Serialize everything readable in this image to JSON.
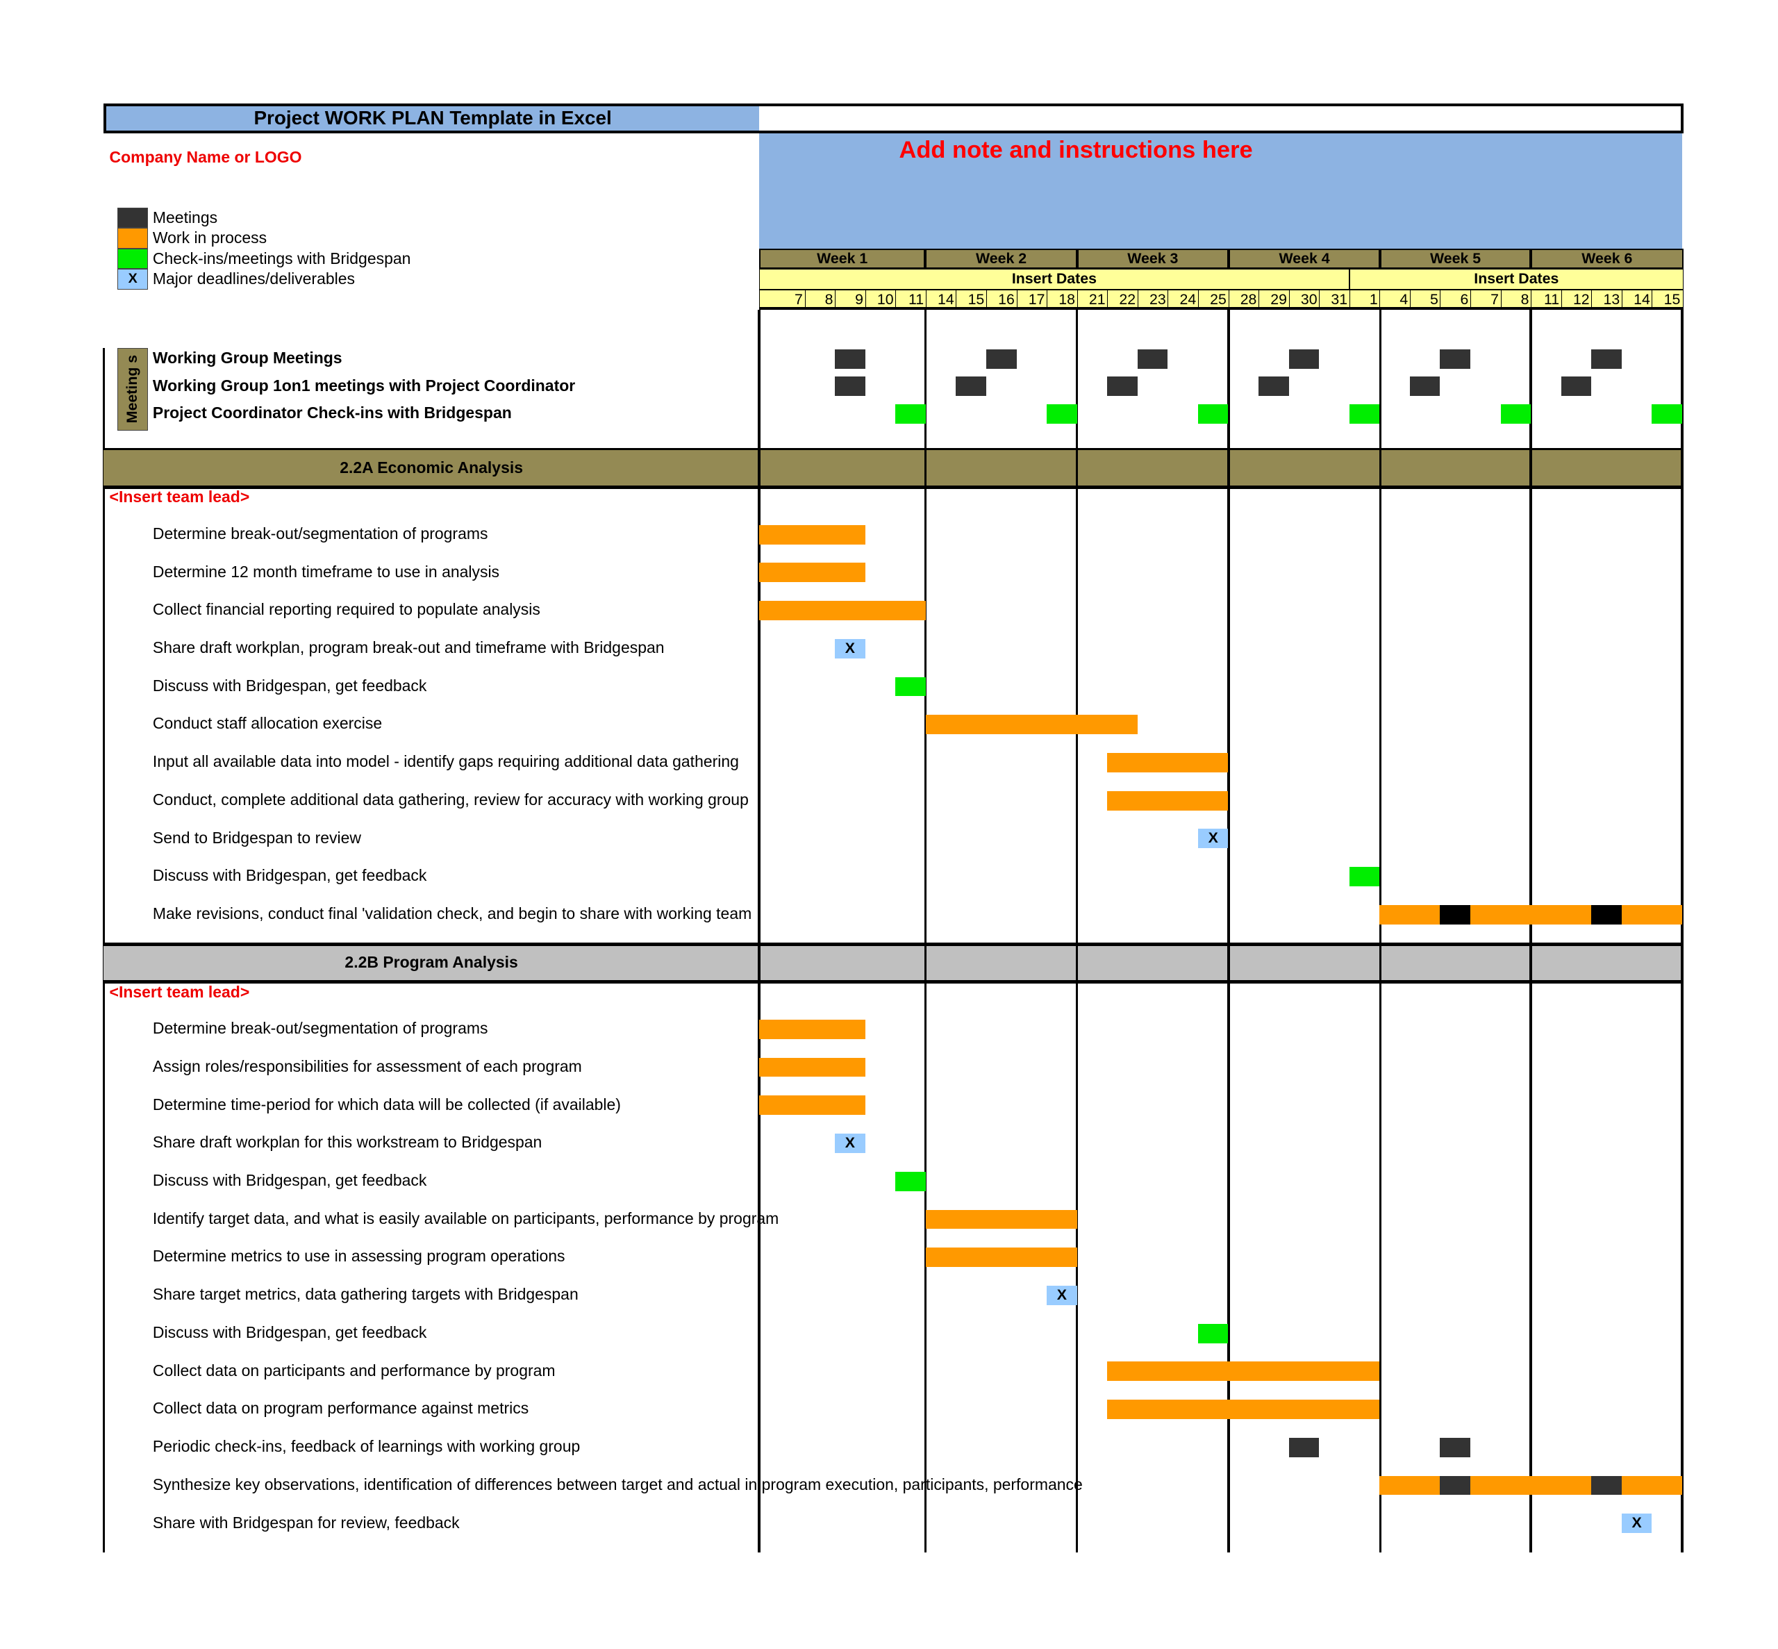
{
  "header": {
    "title": "Project  WORK PLAN Template in Excel",
    "company": "Company Name or LOGO",
    "note": "Add note and instructions here"
  },
  "colors": {
    "meeting": "#333333",
    "work": "#ff9900",
    "checkin": "#00ee00",
    "deadline": "#99ccff",
    "meeting_dark": "#000000",
    "section_a": "#948a54",
    "section_b": "#c0c0c0",
    "title_bg": "#8db3e2",
    "dates_bg": "#ffff99"
  },
  "legend": [
    {
      "type": "meeting",
      "symbol": "",
      "label": "Meetings"
    },
    {
      "type": "work",
      "symbol": "",
      "label": "Work in process"
    },
    {
      "type": "checkin",
      "symbol": "",
      "label": "Check-ins/meetings with Bridgespan"
    },
    {
      "type": "deadline",
      "symbol": "X",
      "label": "Major deadlines/deliverables"
    }
  ],
  "timeline": {
    "weeks": [
      "Week 1",
      "Week 2",
      "Week 3",
      "Week 4",
      "Week 5",
      "Week 6"
    ],
    "insert_dates": [
      "Insert Dates",
      "Insert Dates"
    ],
    "days": [
      "7",
      "8",
      "9",
      "10",
      "11",
      "14",
      "15",
      "16",
      "17",
      "18",
      "21",
      "22",
      "23",
      "24",
      "25",
      "28",
      "29",
      "30",
      "31",
      "1",
      "4",
      "5",
      "6",
      "7",
      "8",
      "11",
      "12",
      "13",
      "14",
      "15"
    ]
  },
  "meetings": {
    "label": "Meeting s",
    "rows": [
      {
        "label": "Working Group Meetings",
        "bars": [
          {
            "type": "meeting",
            "start": 2,
            "end": 2
          },
          {
            "type": "meeting",
            "start": 7,
            "end": 7
          },
          {
            "type": "meeting",
            "start": 12,
            "end": 12
          },
          {
            "type": "meeting",
            "start": 17,
            "end": 17
          },
          {
            "type": "meeting",
            "start": 22,
            "end": 22
          },
          {
            "type": "meeting",
            "start": 27,
            "end": 27
          }
        ]
      },
      {
        "label": "Working Group 1on1 meetings with Project Coordinator",
        "bars": [
          {
            "type": "meeting",
            "start": 2,
            "end": 2
          },
          {
            "type": "meeting",
            "start": 6,
            "end": 6
          },
          {
            "type": "meeting",
            "start": 11,
            "end": 11
          },
          {
            "type": "meeting",
            "start": 16,
            "end": 16
          },
          {
            "type": "meeting",
            "start": 21,
            "end": 21
          },
          {
            "type": "meeting",
            "start": 26,
            "end": 26
          }
        ]
      },
      {
        "label": "Project Coordinator Check-ins with Bridgespan",
        "bars": [
          {
            "type": "checkin",
            "start": 4,
            "end": 4
          },
          {
            "type": "checkin",
            "start": 9,
            "end": 9
          },
          {
            "type": "checkin",
            "start": 14,
            "end": 14
          },
          {
            "type": "checkin",
            "start": 19,
            "end": 19
          },
          {
            "type": "checkin",
            "start": 24,
            "end": 24
          },
          {
            "type": "checkin",
            "start": 29,
            "end": 29
          }
        ]
      }
    ]
  },
  "sections": [
    {
      "title": "2.2A Economic Analysis",
      "lead": "<Insert team lead>",
      "tasks": [
        {
          "label": "Determine break-out/segmentation of programs",
          "bars": [
            {
              "type": "work",
              "start": 0,
              "end": 2
            }
          ]
        },
        {
          "label": "Determine 12 month timeframe to use in analysis",
          "bars": [
            {
              "type": "work",
              "start": 0,
              "end": 2
            }
          ]
        },
        {
          "label": "Collect financial reporting required to populate analysis",
          "bars": [
            {
              "type": "work",
              "start": 0,
              "end": 4
            }
          ]
        },
        {
          "label": "Share draft workplan, program break-out and timeframe with Bridgespan",
          "bars": [
            {
              "type": "deadline",
              "start": 2,
              "end": 2,
              "symbol": "X"
            }
          ]
        },
        {
          "label": "Discuss with Bridgespan, get feedback",
          "bars": [
            {
              "type": "checkin",
              "start": 4,
              "end": 4
            }
          ]
        },
        {
          "label": "Conduct staff allocation exercise",
          "bars": [
            {
              "type": "work",
              "start": 5,
              "end": 11
            }
          ]
        },
        {
          "label": "Input all available data into model - identify gaps requiring additional data gathering",
          "bars": [
            {
              "type": "work",
              "start": 11,
              "end": 14
            }
          ]
        },
        {
          "label": "Conduct, complete additional data gathering, review for accuracy with working group",
          "bars": [
            {
              "type": "work",
              "start": 11,
              "end": 14
            }
          ]
        },
        {
          "label": "Send to Bridgespan to review",
          "bars": [
            {
              "type": "deadline",
              "start": 14,
              "end": 14,
              "symbol": "X"
            }
          ]
        },
        {
          "label": "Discuss with Bridgespan, get feedback",
          "bars": [
            {
              "type": "checkin",
              "start": 19,
              "end": 19
            }
          ]
        },
        {
          "label": "Make revisions, conduct final 'validation check, and begin to share with working team",
          "bars": [
            {
              "type": "work",
              "start": 20,
              "end": 29
            },
            {
              "type": "meeting_dark",
              "start": 22,
              "end": 22
            },
            {
              "type": "meeting_dark",
              "start": 27,
              "end": 27
            }
          ]
        }
      ]
    },
    {
      "title": "2.2B Program Analysis",
      "lead": "<Insert team lead>",
      "tasks": [
        {
          "label": "Determine  break-out/segmentation of programs",
          "bars": [
            {
              "type": "work",
              "start": 0,
              "end": 2
            }
          ]
        },
        {
          "label": "Assign roles/responsibilities for assessment of each program",
          "bars": [
            {
              "type": "work",
              "start": 0,
              "end": 2
            }
          ]
        },
        {
          "label": "Determine time-period for which data will be collected (if available)",
          "bars": [
            {
              "type": "work",
              "start": 0,
              "end": 2
            }
          ]
        },
        {
          "label": "Share draft workplan for this workstream to Bridgespan",
          "bars": [
            {
              "type": "deadline",
              "start": 2,
              "end": 2,
              "symbol": "X"
            }
          ]
        },
        {
          "label": "Discuss with Bridgespan, get feedback",
          "bars": [
            {
              "type": "checkin",
              "start": 4,
              "end": 4
            }
          ]
        },
        {
          "label": "Identify target data, and what is easily available on participants, performance by program",
          "bars": [
            {
              "type": "work",
              "start": 5,
              "end": 9
            }
          ]
        },
        {
          "label": "Determine metrics to use in assessing program operations",
          "bars": [
            {
              "type": "work",
              "start": 5,
              "end": 9
            }
          ]
        },
        {
          "label": "Share target metrics, data gathering targets with Bridgespan",
          "bars": [
            {
              "type": "deadline",
              "start": 9,
              "end": 9,
              "symbol": "X"
            }
          ]
        },
        {
          "label": "Discuss with Bridgespan, get feedback",
          "bars": [
            {
              "type": "checkin",
              "start": 14,
              "end": 14
            }
          ]
        },
        {
          "label": "Collect data on participants and performance by program",
          "bars": [
            {
              "type": "work",
              "start": 11,
              "end": 19
            }
          ]
        },
        {
          "label": "Collect data on program performance against metrics",
          "bars": [
            {
              "type": "work",
              "start": 11,
              "end": 19
            }
          ]
        },
        {
          "label": "Periodic check-ins, feedback of learnings with working group",
          "bars": [
            {
              "type": "meeting",
              "start": 17,
              "end": 17
            },
            {
              "type": "meeting",
              "start": 22,
              "end": 22
            }
          ]
        },
        {
          "label": "Synthesize key observations, identification of differences between target and actual in program execution, participants, performance",
          "bars": [
            {
              "type": "work",
              "start": 20,
              "end": 29
            },
            {
              "type": "meeting",
              "start": 22,
              "end": 22
            },
            {
              "type": "meeting",
              "start": 27,
              "end": 27
            }
          ]
        },
        {
          "label": "Share with Bridgespan for review, feedback",
          "bars": [
            {
              "type": "deadline",
              "start": 28,
              "end": 28,
              "symbol": "X"
            }
          ]
        }
      ]
    }
  ]
}
